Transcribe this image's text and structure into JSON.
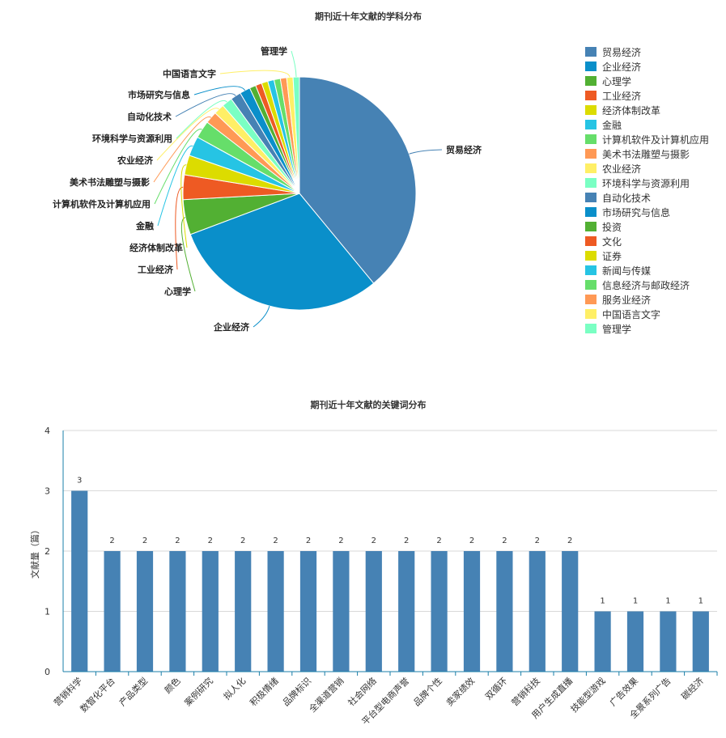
{
  "chart_data": [
    {
      "type": "pie",
      "title": "期刊近十年文献的学科分布",
      "legend_position": "right",
      "slices": [
        {
          "label": "贸易经济",
          "value": 40,
          "color": "#4682b4"
        },
        {
          "label": "企业经济",
          "value": 31,
          "color": "#0a8fca"
        },
        {
          "label": "心理学",
          "value": 5,
          "color": "#52b033"
        },
        {
          "label": "工业经济",
          "value": 3.5,
          "color": "#ee5a23"
        },
        {
          "label": "经济体制改革",
          "value": 2.8,
          "color": "#dcdc00"
        },
        {
          "label": "金融",
          "value": 2.8,
          "color": "#26c4e4"
        },
        {
          "label": "计算机软件及计算机应用",
          "value": 2.5,
          "color": "#66de6a"
        },
        {
          "label": "美术书法雕塑与摄影",
          "value": 1.7,
          "color": "#ff9955"
        },
        {
          "label": "农业经济",
          "value": 1.5,
          "color": "#ffef66"
        },
        {
          "label": "环境科学与资源利用",
          "value": 1.5,
          "color": "#7affc3"
        },
        {
          "label": "自动化技术",
          "value": 1.5,
          "color": "#4682b4"
        },
        {
          "label": "市场研究与信息",
          "value": 1.5,
          "color": "#0a8fca"
        },
        {
          "label": "投资",
          "value": 0.9,
          "color": "#52b033"
        },
        {
          "label": "文化",
          "value": 0.9,
          "color": "#ee5a23"
        },
        {
          "label": "证券",
          "value": 0.9,
          "color": "#dcdc00"
        },
        {
          "label": "新闻与传媒",
          "value": 0.9,
          "color": "#26c4e4"
        },
        {
          "label": "信息经济与邮政经济",
          "value": 0.9,
          "color": "#66de6a"
        },
        {
          "label": "服务业经济",
          "value": 0.9,
          "color": "#ff9955"
        },
        {
          "label": "中国语言文字",
          "value": 0.9,
          "color": "#ffef66"
        },
        {
          "label": "管理学",
          "value": 0.9,
          "color": "#7affc3"
        }
      ],
      "callouts": [
        "贸易经济",
        "企业经济",
        "心理学",
        "工业经济",
        "经济体制改革",
        "金融",
        "计算机软件及计算机应用",
        "美术书法雕塑与摄影",
        "农业经济",
        "环境科学与资源利用",
        "自动化技术",
        "市场研究与信息",
        "中国语言文字",
        "管理学"
      ]
    },
    {
      "type": "bar",
      "title": "期刊近十年文献的关键词分布",
      "ylabel": "文献量（篇）",
      "xlabel": "",
      "ylim": [
        0,
        4
      ],
      "yticks": [
        0,
        1,
        2,
        3,
        4
      ],
      "grid": true,
      "bar_color": "#4682b4",
      "categories": [
        "营销科学",
        "数智化平台",
        "产品类型",
        "颜色",
        "案例研究",
        "拟人化",
        "积极情绪",
        "品牌标识",
        "全渠道营销",
        "社会网络",
        "平台型电商声誉",
        "品牌个性",
        "卖家绩效",
        "双循环",
        "营销科技",
        "用户生成直播",
        "技能型游戏",
        "广告效果",
        "全景系列广告",
        "碳经济"
      ],
      "values": [
        3,
        2,
        2,
        2,
        2,
        2,
        2,
        2,
        2,
        2,
        2,
        2,
        2,
        2,
        2,
        2,
        1,
        1,
        1,
        1
      ]
    }
  ]
}
